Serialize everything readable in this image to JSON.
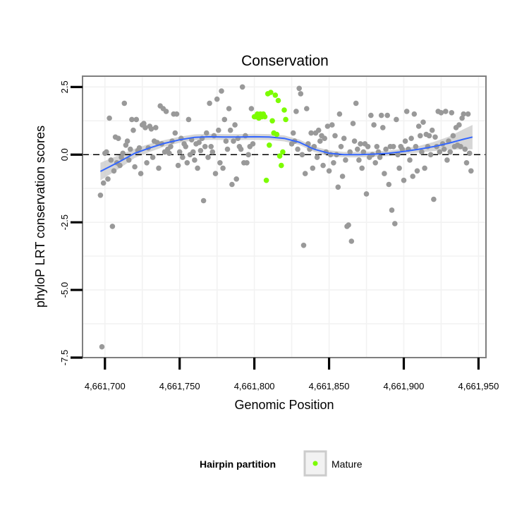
{
  "chart_data": {
    "type": "scatter",
    "title": "Conservation",
    "xlabel": "Genomic Position",
    "ylabel": "phyloP LRT conservation scores",
    "xlim": [
      4661685,
      4661955
    ],
    "ylim": [
      -7.5,
      2.9
    ],
    "x_ticks": [
      4661700,
      4661750,
      4661800,
      4661850,
      4661900,
      4661950
    ],
    "x_tick_labels": [
      "4,661,700",
      "4,661,750",
      "4,661,800",
      "4,661,850",
      "4,661,900",
      "4,661,950"
    ],
    "y_ticks": [
      -7.5,
      -5.0,
      -2.5,
      0.0,
      2.5
    ],
    "y_tick_labels": [
      "-7.5",
      "-5.0",
      "-2.5",
      "0.0",
      "2.5"
    ],
    "grid": true,
    "reference_line": {
      "y": 0,
      "style": "dashed",
      "color": "#000000"
    },
    "colors": {
      "background_points": "#999999",
      "mature_points": "#7CFC00",
      "smooth_line": "#3366FF",
      "ribbon": "#d3d3d3",
      "panel_border": "#7f7f7f",
      "gridline": "#f2f2f2"
    },
    "legend": {
      "title": "Hairpin partition",
      "position": "bottom",
      "entries": [
        {
          "label": "Mature",
          "color": "#7CFC00"
        }
      ]
    },
    "series": [
      {
        "name": "",
        "color": "#999999",
        "points": [
          [
            4661697,
            -1.5
          ],
          [
            4661698,
            -7.1
          ],
          [
            4661699,
            -1.05
          ],
          [
            4661700,
            0.05
          ],
          [
            4661701,
            0.1
          ],
          [
            4661702,
            -0.9
          ],
          [
            4661703,
            1.35
          ],
          [
            4661704,
            -0.2
          ],
          [
            4661705,
            -2.65
          ],
          [
            4661706,
            -0.6
          ],
          [
            4661707,
            0.65
          ],
          [
            4661708,
            -0.3
          ],
          [
            4661709,
            0.6
          ],
          [
            4661710,
            -0.4
          ],
          [
            4661711,
            -0.1
          ],
          [
            4661712,
            0.05
          ],
          [
            4661713,
            1.9
          ],
          [
            4661714,
            0.35
          ],
          [
            4661715,
            0.5
          ],
          [
            4661716,
            -0.2
          ],
          [
            4661717,
            0.2
          ],
          [
            4661718,
            1.3
          ],
          [
            4661719,
            0.9
          ],
          [
            4661720,
            -0.45
          ],
          [
            4661721,
            1.3
          ],
          [
            4661722,
            0.15
          ],
          [
            4661723,
            0.25
          ],
          [
            4661724,
            -0.7
          ],
          [
            4661725,
            1.1
          ],
          [
            4661726,
            1.15
          ],
          [
            4661727,
            1.0
          ],
          [
            4661728,
            -0.3
          ],
          [
            4661729,
            0.25
          ],
          [
            4661730,
            1.05
          ],
          [
            4661731,
            0.95
          ],
          [
            4661732,
            -0.1
          ],
          [
            4661733,
            0.5
          ],
          [
            4661734,
            1.0
          ],
          [
            4661735,
            0.45
          ],
          [
            4661736,
            -0.5
          ],
          [
            4661737,
            1.8
          ],
          [
            4661738,
            0.4
          ],
          [
            4661739,
            1.7
          ],
          [
            4661740,
            0.1
          ],
          [
            4661741,
            1.6
          ],
          [
            4661742,
            0.2
          ],
          [
            4661743,
            0.05
          ],
          [
            4661744,
            0.3
          ],
          [
            4661745,
            0.5
          ],
          [
            4661746,
            1.5
          ],
          [
            4661747,
            0.8
          ],
          [
            4661748,
            1.5
          ],
          [
            4661749,
            -0.4
          ],
          [
            4661750,
            0.1
          ],
          [
            4661751,
            0.6
          ],
          [
            4661752,
            -0.1
          ],
          [
            4661753,
            0.4
          ],
          [
            4661754,
            0.3
          ],
          [
            4661755,
            -0.3
          ],
          [
            4661756,
            1.3
          ],
          [
            4661757,
            0.0
          ],
          [
            4661758,
            0.55
          ],
          [
            4661759,
            0.1
          ],
          [
            4661760,
            -0.2
          ],
          [
            4661761,
            0.4
          ],
          [
            4661762,
            -0.5
          ],
          [
            4661763,
            0.45
          ],
          [
            4661764,
            0.15
          ],
          [
            4661765,
            0.6
          ],
          [
            4661766,
            -1.7
          ],
          [
            4661767,
            0.3
          ],
          [
            4661768,
            0.8
          ],
          [
            4661769,
            -0.1
          ],
          [
            4661770,
            1.9
          ],
          [
            4661771,
            0.3
          ],
          [
            4661772,
            0.1
          ],
          [
            4661773,
            0.7
          ],
          [
            4661774,
            -0.7
          ],
          [
            4661775,
            2.05
          ],
          [
            4661776,
            0.9
          ],
          [
            4661777,
            -0.3
          ],
          [
            4661778,
            2.35
          ],
          [
            4661779,
            -0.5
          ],
          [
            4661780,
            1.3
          ],
          [
            4661781,
            0.5
          ],
          [
            4661782,
            0.2
          ],
          [
            4661783,
            1.7
          ],
          [
            4661784,
            0.9
          ],
          [
            4661785,
            -1.1
          ],
          [
            4661786,
            0.5
          ],
          [
            4661787,
            1.1
          ],
          [
            4661788,
            -0.9
          ],
          [
            4661789,
            0.6
          ],
          [
            4661790,
            0.3
          ],
          [
            4661791,
            0.2
          ],
          [
            4661792,
            2.5
          ],
          [
            4661793,
            -0.3
          ],
          [
            4661794,
            0.7
          ],
          [
            4661795,
            -0.3
          ],
          [
            4661796,
            0.0
          ],
          [
            4661797,
            0.3
          ],
          [
            4661798,
            1.7
          ],
          [
            4661799,
            0.4
          ],
          [
            4661825,
            0.4
          ],
          [
            4661826,
            0.8
          ],
          [
            4661827,
            0.5
          ],
          [
            4661828,
            1.6
          ],
          [
            4661829,
            0.2
          ],
          [
            4661830,
            2.45
          ],
          [
            4661831,
            2.25
          ],
          [
            4661832,
            0.0
          ],
          [
            4661833,
            -3.35
          ],
          [
            4661834,
            -0.7
          ],
          [
            4661835,
            1.7
          ],
          [
            4661836,
            0.4
          ],
          [
            4661837,
            0.2
          ],
          [
            4661838,
            0.8
          ],
          [
            4661839,
            -0.5
          ],
          [
            4661840,
            0.3
          ],
          [
            4661841,
            0.8
          ],
          [
            4661842,
            -0.1
          ],
          [
            4661843,
            0.9
          ],
          [
            4661844,
            0.5
          ],
          [
            4661845,
            0.7
          ],
          [
            4661846,
            -0.4
          ],
          [
            4661847,
            0.6
          ],
          [
            4661848,
            0.1
          ],
          [
            4661849,
            1.05
          ],
          [
            4661850,
            -0.6
          ],
          [
            4661851,
            0.0
          ],
          [
            4661852,
            1.1
          ],
          [
            4661853,
            -0.3
          ],
          [
            4661854,
            0.7
          ],
          [
            4661855,
            0.0
          ],
          [
            4661856,
            -1.2
          ],
          [
            4661857,
            1.5
          ],
          [
            4661858,
            0.3
          ],
          [
            4661859,
            -0.8
          ],
          [
            4661860,
            0.6
          ],
          [
            4661861,
            -0.2
          ],
          [
            4661862,
            -2.65
          ],
          [
            4661863,
            -2.6
          ],
          [
            4661864,
            0.1
          ],
          [
            4661865,
            -3.2
          ],
          [
            4661866,
            1.15
          ],
          [
            4661867,
            0.5
          ],
          [
            4661868,
            1.9
          ],
          [
            4661869,
            0.2
          ],
          [
            4661870,
            -0.2
          ],
          [
            4661871,
            0.4
          ],
          [
            4661872,
            -0.5
          ],
          [
            4661873,
            0.1
          ],
          [
            4661874,
            0.4
          ],
          [
            4661875,
            -1.45
          ],
          [
            4661876,
            0.3
          ],
          [
            4661877,
            -0.1
          ],
          [
            4661878,
            1.45
          ],
          [
            4661879,
            0.0
          ],
          [
            4661880,
            1.1
          ],
          [
            4661881,
            -0.3
          ],
          [
            4661882,
            0.3
          ],
          [
            4661883,
            0.1
          ],
          [
            4661884,
            -0.1
          ],
          [
            4661885,
            1.45
          ],
          [
            4661886,
            1.0
          ],
          [
            4661887,
            -0.7
          ],
          [
            4661888,
            0.2
          ],
          [
            4661889,
            1.45
          ],
          [
            4661890,
            -1.1
          ],
          [
            4661891,
            0.3
          ],
          [
            4661892,
            -2.05
          ],
          [
            4661893,
            0.3
          ],
          [
            4661894,
            -2.55
          ],
          [
            4661895,
            1.3
          ],
          [
            4661896,
            0.0
          ],
          [
            4661897,
            -0.5
          ],
          [
            4661898,
            0.3
          ],
          [
            4661899,
            0.2
          ],
          [
            4661900,
            -0.95
          ],
          [
            4661901,
            0.5
          ],
          [
            4661902,
            1.6
          ],
          [
            4661903,
            0.2
          ],
          [
            4661904,
            -0.2
          ],
          [
            4661905,
            0.6
          ],
          [
            4661906,
            -0.8
          ],
          [
            4661907,
            1.5
          ],
          [
            4661908,
            0.3
          ],
          [
            4661909,
            -0.6
          ],
          [
            4661910,
            1.05
          ],
          [
            4661911,
            0.7
          ],
          [
            4661912,
            0.1
          ],
          [
            4661913,
            1.2
          ],
          [
            4661914,
            -0.5
          ],
          [
            4661915,
            0.75
          ],
          [
            4661916,
            0.3
          ],
          [
            4661917,
            0.7
          ],
          [
            4661918,
            0.0
          ],
          [
            4661919,
            0.9
          ],
          [
            4661920,
            -1.65
          ],
          [
            4661921,
            0.65
          ],
          [
            4661922,
            0.3
          ],
          [
            4661923,
            1.6
          ],
          [
            4661924,
            0.1
          ],
          [
            4661925,
            1.55
          ],
          [
            4661926,
            0.4
          ],
          [
            4661927,
            0.2
          ],
          [
            4661928,
            1.6
          ],
          [
            4661929,
            -0.2
          ],
          [
            4661930,
            0.5
          ],
          [
            4661931,
            0.1
          ],
          [
            4661932,
            1.55
          ],
          [
            4661933,
            0.7
          ],
          [
            4661934,
            0.3
          ],
          [
            4661935,
            1.0
          ],
          [
            4661936,
            0.35
          ],
          [
            4661937,
            1.1
          ],
          [
            4661938,
            0.3
          ],
          [
            4661939,
            1.35
          ],
          [
            4661940,
            1.5
          ],
          [
            4661941,
            0.2
          ],
          [
            4661942,
            -0.3
          ],
          [
            4661943,
            1.5
          ],
          [
            4661944,
            0.05
          ],
          [
            4661945,
            -0.6
          ]
        ]
      },
      {
        "name": "Mature",
        "color": "#7CFC00",
        "points": [
          [
            4661800,
            1.4
          ],
          [
            4661801,
            1.4
          ],
          [
            4661802,
            1.5
          ],
          [
            4661803,
            1.35
          ],
          [
            4661804,
            1.5
          ],
          [
            4661805,
            1.4
          ],
          [
            4661806,
            1.5
          ],
          [
            4661807,
            1.4
          ],
          [
            4661808,
            -0.95
          ],
          [
            4661809,
            2.25
          ],
          [
            4661810,
            0.35
          ],
          [
            4661811,
            2.3
          ],
          [
            4661812,
            1.25
          ],
          [
            4661813,
            0.8
          ],
          [
            4661814,
            2.2
          ],
          [
            4661815,
            0.75
          ],
          [
            4661816,
            2.0
          ],
          [
            4661817,
            -0.05
          ],
          [
            4661818,
            -0.4
          ],
          [
            4661819,
            0.1
          ],
          [
            4661820,
            1.65
          ],
          [
            4661821,
            1.3
          ]
        ]
      }
    ],
    "smooth": {
      "x": [
        4661697,
        4661710,
        4661720,
        4661730,
        4661740,
        4661750,
        4661760,
        4661770,
        4661780,
        4661790,
        4661800,
        4661810,
        4661820,
        4661830,
        4661840,
        4661850,
        4661860,
        4661870,
        4661880,
        4661890,
        4661900,
        4661910,
        4661920,
        4661930,
        4661940,
        4661946
      ],
      "y": [
        -0.62,
        -0.25,
        0.05,
        0.25,
        0.42,
        0.55,
        0.64,
        0.66,
        0.65,
        0.65,
        0.66,
        0.65,
        0.6,
        0.46,
        0.2,
        0.05,
        0.0,
        0.0,
        0.02,
        0.05,
        0.12,
        0.2,
        0.3,
        0.42,
        0.57,
        0.65
      ],
      "lo": [
        -0.95,
        -0.5,
        -0.12,
        0.1,
        0.3,
        0.44,
        0.53,
        0.55,
        0.54,
        0.54,
        0.55,
        0.54,
        0.49,
        0.36,
        0.1,
        -0.06,
        -0.1,
        -0.1,
        -0.08,
        -0.05,
        0.02,
        0.08,
        0.13,
        0.18,
        0.2,
        0.2
      ],
      "hi": [
        -0.3,
        0.0,
        0.22,
        0.4,
        0.54,
        0.66,
        0.75,
        0.77,
        0.76,
        0.76,
        0.77,
        0.76,
        0.71,
        0.56,
        0.3,
        0.16,
        0.1,
        0.1,
        0.12,
        0.15,
        0.22,
        0.32,
        0.47,
        0.66,
        0.94,
        1.1
      ]
    }
  }
}
